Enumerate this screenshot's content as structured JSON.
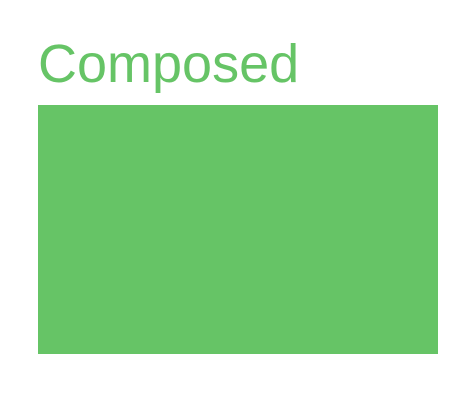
{
  "title": "Composed",
  "colors": {
    "accent": "#66c466",
    "background": "#ffffff"
  }
}
